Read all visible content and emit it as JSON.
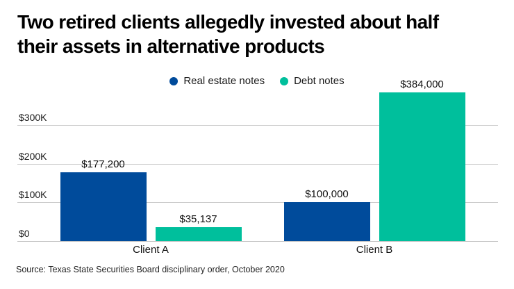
{
  "title": {
    "line1": "Two retired clients allegedly invested about half",
    "line2": "their assets in alternative products"
  },
  "legend": {
    "items": [
      {
        "label": "Real estate notes",
        "color": "#004B9B"
      },
      {
        "label": "Debt notes",
        "color": "#00BF9C"
      }
    ]
  },
  "source": "Source: Texas State Securities Board disciplinary order, October 2020",
  "colors": {
    "real_estate_notes": "#004B9B",
    "debt_notes": "#00BF9C",
    "gridline": "#cccccc",
    "text": "#111111"
  },
  "chart_data": {
    "type": "bar",
    "title": "Two retired clients allegedly invested about half their assets in alternative products",
    "categories": [
      "Client A",
      "Client B"
    ],
    "series": [
      {
        "name": "Real estate notes",
        "color": "#004B9B",
        "values": [
          177200,
          100000
        ],
        "labels": [
          "$177,200",
          "$100,000"
        ]
      },
      {
        "name": "Debt notes",
        "color": "#00BF9C",
        "values": [
          35137,
          384000
        ],
        "labels": [
          "$35,137",
          "$384,000"
        ]
      }
    ],
    "xlabel": "",
    "ylabel": "",
    "ylim": [
      0,
      400000
    ],
    "yticks": [
      {
        "value": 0,
        "label": "$0"
      },
      {
        "value": 100000,
        "label": "$100K"
      },
      {
        "value": 200000,
        "label": "$200K"
      },
      {
        "value": 300000,
        "label": "$300K"
      }
    ],
    "grid": "horizontal",
    "legend_position": "top-center",
    "bar_label_position": "above"
  }
}
